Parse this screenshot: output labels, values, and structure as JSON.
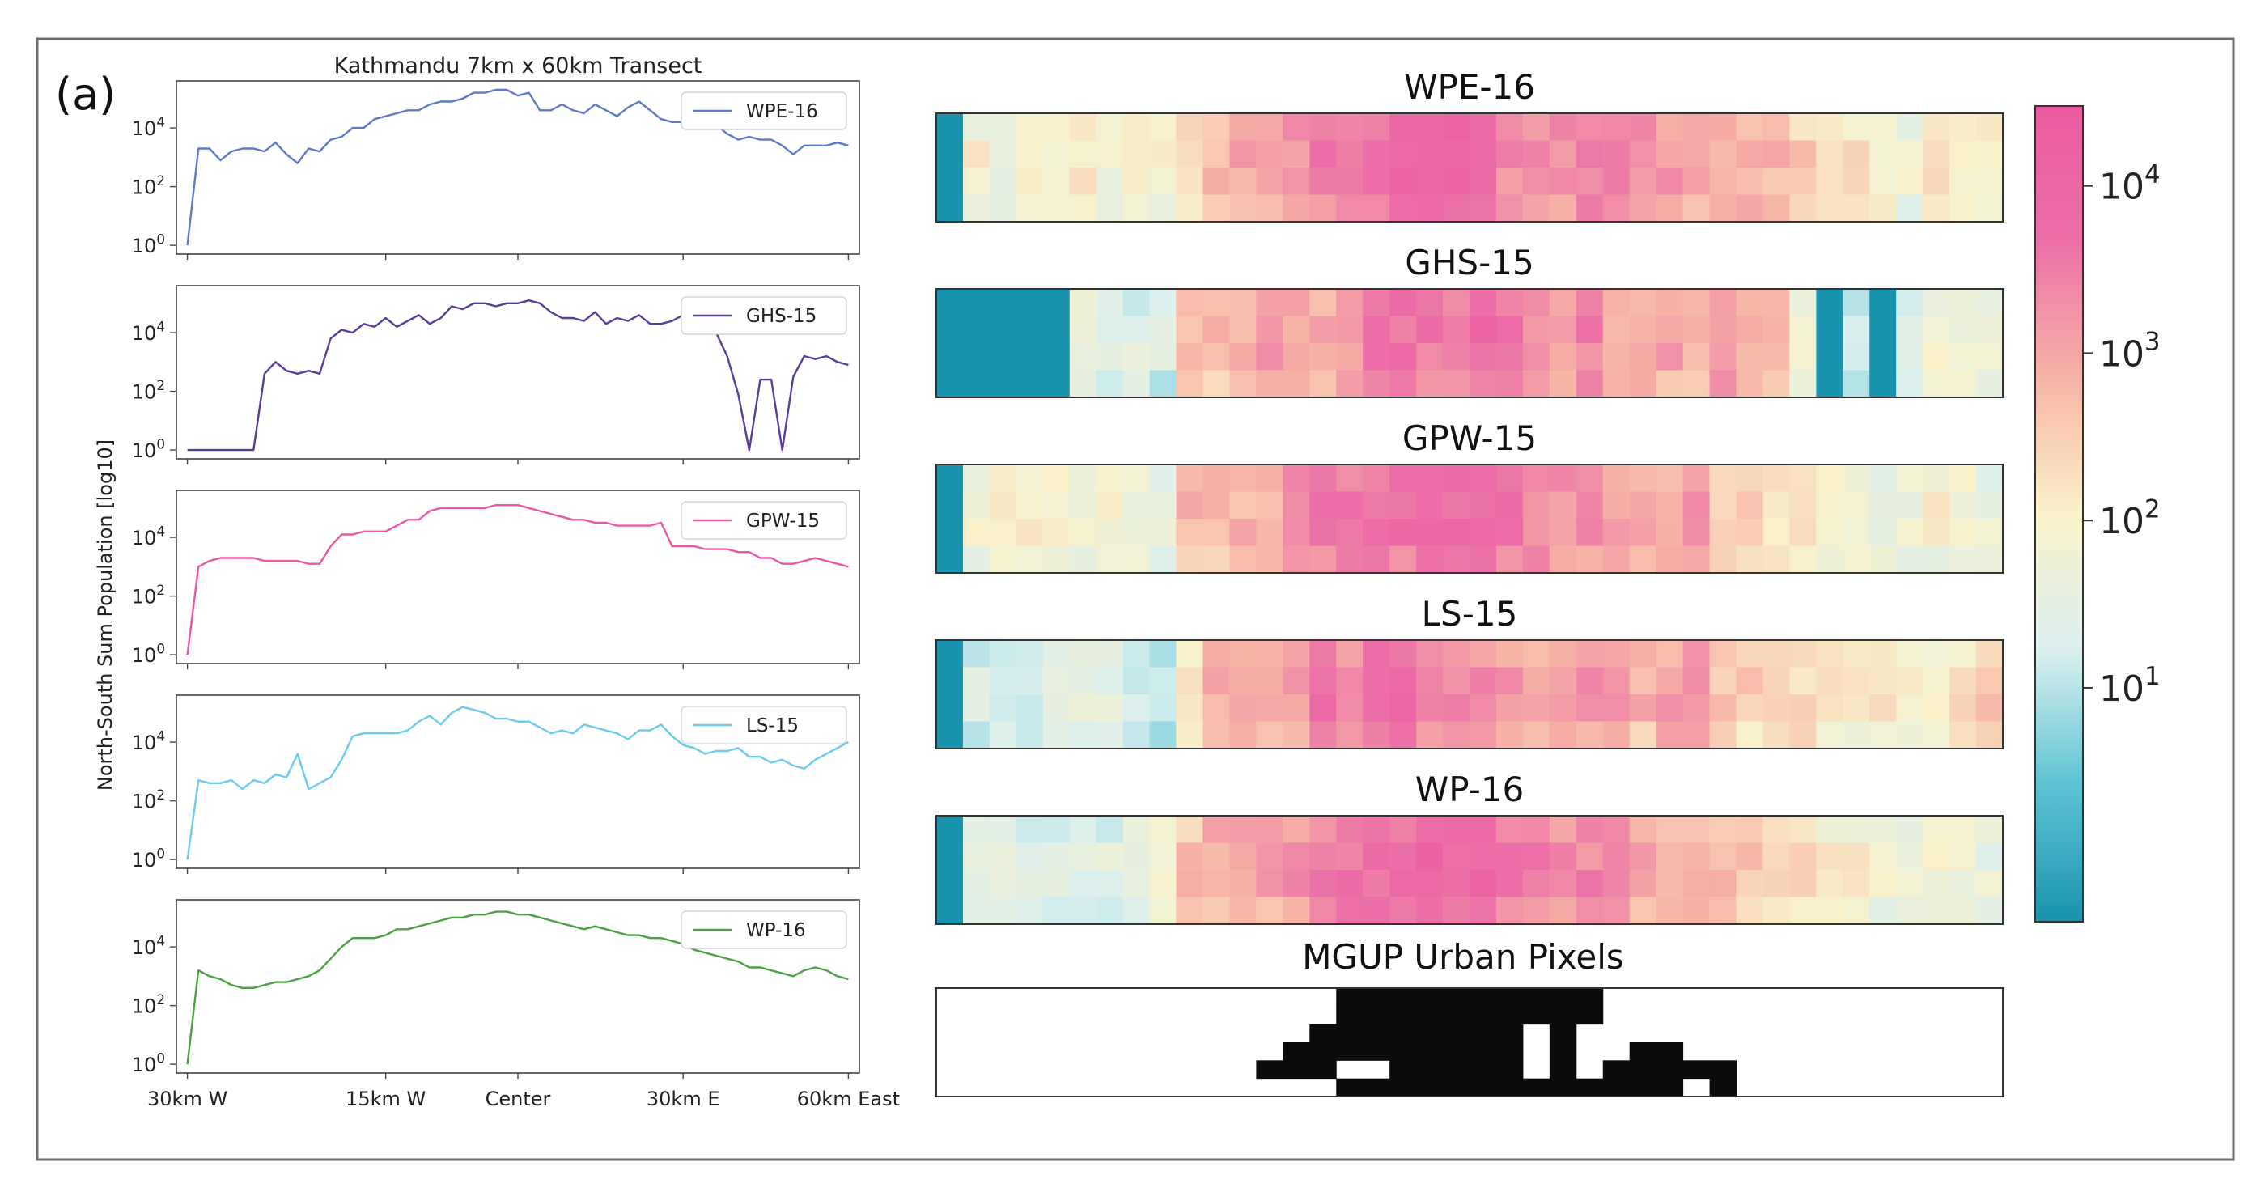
{
  "panel_label": "(a)",
  "colorbar": {
    "scale": "log",
    "tick_labels": [
      {
        "base": "10",
        "exp": "4",
        "value": 10000
      },
      {
        "base": "10",
        "exp": "3",
        "value": 1000
      },
      {
        "base": "10",
        "exp": "2",
        "value": 100
      },
      {
        "base": "10",
        "exp": "1",
        "value": 10
      }
    ],
    "range": [
      0.4,
      30000
    ],
    "colors": [
      "#1a93ae",
      "#5cc3d4",
      "#dbf0ef",
      "#f9f1c9",
      "#f7b4a5",
      "#ec6fa8",
      "#e95aa0"
    ]
  },
  "urban_title": "MGUP Urban Pixels",
  "chart_data": [
    {
      "type": "line",
      "title": "Kathmandu 7km x 60km Transect",
      "ylabel": "North-South Sum Population [log10]",
      "yscale": "log",
      "ylim": [
        0.5,
        400000
      ],
      "ytick_labels": [
        {
          "base": "10",
          "exp": "0",
          "value": 1
        },
        {
          "base": "10",
          "exp": "2",
          "value": 100
        },
        {
          "base": "10",
          "exp": "4",
          "value": 10000
        }
      ],
      "xlim": [
        -1,
        61
      ],
      "xticks": [
        {
          "label": "30km W",
          "x": 0
        },
        {
          "label": "15km W",
          "x": 18
        },
        {
          "label": "Center",
          "x": 30
        },
        {
          "label": "30km E",
          "x": 45
        },
        {
          "label": "60km East",
          "x": 60
        }
      ],
      "series": [
        {
          "name": "WPE-16",
          "color": "#5f79c9",
          "log10": [
            0.0,
            3.3,
            3.3,
            2.9,
            3.2,
            3.3,
            3.3,
            3.2,
            3.5,
            3.1,
            2.8,
            3.3,
            3.2,
            3.6,
            3.7,
            4.0,
            4.0,
            4.3,
            4.4,
            4.5,
            4.6,
            4.6,
            4.8,
            4.9,
            4.9,
            5.0,
            5.2,
            5.2,
            5.3,
            5.3,
            5.1,
            5.2,
            4.6,
            4.6,
            4.8,
            4.6,
            4.5,
            4.8,
            4.6,
            4.4,
            4.7,
            4.9,
            4.6,
            4.3,
            4.2,
            4.2,
            4.3,
            4.3,
            4.1,
            3.8,
            3.6,
            3.7,
            3.6,
            3.6,
            3.4,
            3.1,
            3.4,
            3.4,
            3.4,
            3.5,
            3.4
          ]
        },
        {
          "name": "GHS-15",
          "color": "#5a3d9a",
          "log10": [
            0.0,
            0.0,
            0.0,
            0.0,
            0.0,
            0.0,
            0.0,
            2.6,
            3.0,
            2.7,
            2.6,
            2.7,
            2.6,
            3.8,
            4.1,
            4.0,
            4.3,
            4.2,
            4.5,
            4.2,
            4.4,
            4.6,
            4.3,
            4.5,
            4.9,
            4.8,
            5.0,
            5.0,
            4.9,
            5.0,
            5.0,
            5.1,
            5.0,
            4.7,
            4.5,
            4.5,
            4.4,
            4.7,
            4.3,
            4.5,
            4.4,
            4.6,
            4.3,
            4.3,
            4.4,
            4.6,
            4.1,
            4.7,
            4.0,
            3.2,
            1.9,
            0.0,
            2.4,
            2.4,
            0.0,
            2.5,
            3.2,
            3.1,
            3.2,
            3.0,
            2.9
          ]
        },
        {
          "name": "GPW-15",
          "color": "#ea58a5",
          "log10": [
            0.0,
            3.0,
            3.2,
            3.3,
            3.3,
            3.3,
            3.3,
            3.2,
            3.2,
            3.2,
            3.2,
            3.1,
            3.1,
            3.7,
            4.1,
            4.1,
            4.2,
            4.2,
            4.2,
            4.4,
            4.6,
            4.6,
            4.9,
            5.0,
            5.0,
            5.0,
            5.0,
            5.0,
            5.1,
            5.1,
            5.1,
            5.0,
            4.9,
            4.8,
            4.7,
            4.6,
            4.6,
            4.5,
            4.5,
            4.4,
            4.4,
            4.4,
            4.4,
            4.5,
            3.7,
            3.7,
            3.7,
            3.6,
            3.6,
            3.6,
            3.5,
            3.5,
            3.3,
            3.3,
            3.1,
            3.1,
            3.2,
            3.3,
            3.2,
            3.1,
            3.0
          ]
        },
        {
          "name": "LS-15",
          "color": "#6ccbef",
          "log10": [
            0.0,
            2.7,
            2.6,
            2.6,
            2.7,
            2.4,
            2.7,
            2.6,
            2.9,
            2.8,
            3.6,
            2.4,
            2.6,
            2.8,
            3.4,
            4.2,
            4.3,
            4.3,
            4.3,
            4.3,
            4.4,
            4.7,
            4.9,
            4.6,
            5.0,
            5.2,
            5.1,
            5.0,
            4.8,
            4.8,
            4.7,
            4.7,
            4.5,
            4.3,
            4.4,
            4.3,
            4.6,
            4.5,
            4.4,
            4.3,
            4.1,
            4.4,
            4.4,
            4.6,
            4.2,
            3.9,
            3.8,
            3.6,
            3.7,
            3.7,
            3.8,
            3.5,
            3.5,
            3.3,
            3.4,
            3.2,
            3.1,
            3.4,
            3.6,
            3.8,
            4.0
          ]
        },
        {
          "name": "WP-16",
          "color": "#4aa340",
          "log10": [
            0.0,
            3.2,
            3.0,
            2.9,
            2.7,
            2.6,
            2.6,
            2.7,
            2.8,
            2.8,
            2.9,
            3.0,
            3.2,
            3.6,
            4.0,
            4.3,
            4.3,
            4.3,
            4.4,
            4.6,
            4.6,
            4.7,
            4.8,
            4.9,
            5.0,
            5.0,
            5.1,
            5.1,
            5.2,
            5.2,
            5.1,
            5.1,
            5.0,
            4.9,
            4.8,
            4.7,
            4.6,
            4.7,
            4.6,
            4.5,
            4.4,
            4.4,
            4.3,
            4.3,
            4.2,
            4.1,
            3.9,
            3.8,
            3.7,
            3.6,
            3.5,
            3.3,
            3.3,
            3.2,
            3.1,
            3.0,
            3.2,
            3.3,
            3.2,
            3.0,
            2.9
          ]
        }
      ]
    },
    {
      "type": "heatmap",
      "color_scale": "log",
      "cols": 40,
      "rows": 4,
      "panels": [
        {
          "title": "WPE-16",
          "profile_log10": [
            0.0,
            3.3,
            3.3,
            2.9,
            3.2,
            3.3,
            3.3,
            3.2,
            3.5,
            3.1,
            2.8,
            3.3,
            3.2,
            3.6,
            3.7,
            4.0,
            4.0,
            4.3,
            4.4,
            4.5,
            4.6,
            4.6,
            4.8,
            4.9,
            4.9,
            5.0,
            5.2,
            5.2,
            5.3,
            5.3,
            5.1,
            5.2,
            4.6,
            4.6,
            4.8,
            4.6,
            4.5,
            4.8,
            4.6,
            4.4,
            4.7,
            4.9,
            4.6,
            4.3,
            4.2,
            4.2,
            4.3,
            4.3,
            4.1,
            3.8,
            3.6,
            3.7,
            3.6,
            3.6,
            3.4,
            3.1,
            3.4,
            3.4,
            3.4,
            3.5,
            3.4
          ]
        },
        {
          "title": "GHS-15",
          "profile_log10": [
            0.0,
            0.0,
            0.0,
            0.0,
            0.0,
            0.0,
            0.0,
            2.6,
            3.0,
            2.7,
            2.6,
            2.7,
            2.6,
            3.8,
            4.1,
            4.0,
            4.3,
            4.2,
            4.5,
            4.2,
            4.4,
            4.6,
            4.3,
            4.5,
            4.9,
            4.8,
            5.0,
            5.0,
            4.9,
            5.0,
            5.0,
            5.1,
            5.0,
            4.7,
            4.5,
            4.5,
            4.4,
            4.7,
            4.3,
            4.5,
            4.4,
            4.6,
            4.3,
            4.3,
            4.4,
            4.6,
            4.1,
            4.7,
            4.0,
            3.2,
            1.9,
            0.0,
            2.4,
            2.4,
            0.0,
            2.5,
            3.2,
            3.1,
            3.2,
            3.0,
            2.9
          ]
        },
        {
          "title": "GPW-15",
          "profile_log10": [
            0.0,
            3.0,
            3.2,
            3.3,
            3.3,
            3.3,
            3.3,
            3.2,
            3.2,
            3.2,
            3.2,
            3.1,
            3.1,
            3.7,
            4.1,
            4.1,
            4.2,
            4.2,
            4.2,
            4.4,
            4.6,
            4.6,
            4.9,
            5.0,
            5.0,
            5.0,
            5.0,
            5.0,
            5.1,
            5.1,
            5.1,
            5.0,
            4.9,
            4.8,
            4.7,
            4.6,
            4.6,
            4.5,
            4.5,
            4.4,
            4.4,
            4.4,
            4.4,
            4.5,
            3.7,
            3.7,
            3.7,
            3.6,
            3.6,
            3.6,
            3.5,
            3.5,
            3.3,
            3.3,
            3.1,
            3.1,
            3.2,
            3.3,
            3.2,
            3.1,
            3.0
          ]
        },
        {
          "title": "LS-15",
          "profile_log10": [
            0.0,
            2.7,
            2.6,
            2.6,
            2.7,
            2.4,
            2.7,
            2.6,
            2.9,
            2.8,
            3.6,
            2.4,
            2.6,
            2.8,
            3.4,
            4.2,
            4.3,
            4.3,
            4.3,
            4.3,
            4.4,
            4.7,
            4.9,
            4.6,
            5.0,
            5.2,
            5.1,
            5.0,
            4.8,
            4.8,
            4.7,
            4.7,
            4.5,
            4.3,
            4.4,
            4.3,
            4.6,
            4.5,
            4.4,
            4.3,
            4.1,
            4.4,
            4.4,
            4.6,
            4.2,
            3.9,
            3.8,
            3.6,
            3.7,
            3.7,
            3.8,
            3.5,
            3.5,
            3.3,
            3.4,
            3.2,
            3.1,
            3.4,
            3.6,
            3.8,
            4.0
          ]
        },
        {
          "title": "WP-16",
          "profile_log10": [
            0.0,
            3.2,
            3.0,
            2.9,
            2.7,
            2.6,
            2.6,
            2.7,
            2.8,
            2.8,
            2.9,
            3.0,
            3.2,
            3.6,
            4.0,
            4.3,
            4.3,
            4.3,
            4.4,
            4.6,
            4.6,
            4.7,
            4.8,
            4.9,
            5.0,
            5.0,
            5.1,
            5.1,
            5.2,
            5.2,
            5.1,
            5.1,
            5.0,
            4.9,
            4.8,
            4.7,
            4.6,
            4.7,
            4.6,
            4.5,
            4.4,
            4.4,
            4.3,
            4.3,
            4.2,
            4.1,
            3.9,
            3.8,
            3.7,
            3.6,
            3.5,
            3.3,
            3.3,
            3.2,
            3.1,
            3.0,
            3.2,
            3.3,
            3.2,
            3.0,
            2.9
          ]
        }
      ]
    },
    {
      "type": "heatmap",
      "title": "MGUP Urban Pixels",
      "binary": true,
      "cols": 40,
      "urban_rows": [
        [
          15,
          24
        ],
        [
          15,
          24
        ],
        [
          14,
          21,
          23,
          23
        ],
        [
          13,
          21,
          23,
          23,
          26,
          27
        ],
        [
          12,
          14,
          17,
          21,
          23,
          23,
          25,
          29
        ],
        [
          15,
          20,
          21,
          27,
          29,
          29
        ]
      ]
    }
  ]
}
